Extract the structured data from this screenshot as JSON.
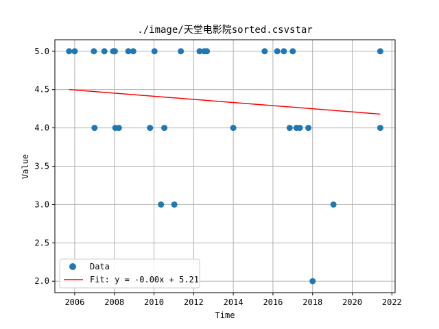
{
  "chart_data": {
    "type": "scatter",
    "title": "./image/天堂电影院sorted.csvstar",
    "xlabel": "Time",
    "ylabel": "Value",
    "xlim": [
      "2005-01-01",
      "2022-03-01"
    ],
    "ylim": [
      1.85,
      5.15
    ],
    "xticks": [
      "2006",
      "2008",
      "2010",
      "2012",
      "2014",
      "2016",
      "2018",
      "2020",
      "2022"
    ],
    "yticks": [
      "2.0",
      "2.5",
      "3.0",
      "3.5",
      "4.0",
      "4.5",
      "5.0"
    ],
    "grid": true,
    "legend_position": "lower-left",
    "series": [
      {
        "name": "Data",
        "kind": "points",
        "color": "#1f77b4",
        "points": [
          {
            "x": "2005-09-20",
            "y": 5.0
          },
          {
            "x": "2006-01-01",
            "y": 5.0
          },
          {
            "x": "2006-12-20",
            "y": 5.0
          },
          {
            "x": "2007-01-01",
            "y": 4.0
          },
          {
            "x": "2007-07-01",
            "y": 5.0
          },
          {
            "x": "2007-12-10",
            "y": 5.0
          },
          {
            "x": "2008-01-10",
            "y": 5.0
          },
          {
            "x": "2008-01-20",
            "y": 4.0
          },
          {
            "x": "2008-03-25",
            "y": 4.0
          },
          {
            "x": "2008-09-15",
            "y": 5.0
          },
          {
            "x": "2008-12-15",
            "y": 5.0
          },
          {
            "x": "2009-10-20",
            "y": 4.0
          },
          {
            "x": "2010-01-10",
            "y": 5.0
          },
          {
            "x": "2010-05-10",
            "y": 3.0
          },
          {
            "x": "2010-07-10",
            "y": 4.0
          },
          {
            "x": "2011-01-10",
            "y": 3.0
          },
          {
            "x": "2011-05-10",
            "y": 5.0
          },
          {
            "x": "2012-04-20",
            "y": 5.0
          },
          {
            "x": "2012-07-15",
            "y": 5.0
          },
          {
            "x": "2012-09-01",
            "y": 5.0
          },
          {
            "x": "2014-01-01",
            "y": 4.0
          },
          {
            "x": "2015-08-01",
            "y": 5.0
          },
          {
            "x": "2016-03-20",
            "y": 5.0
          },
          {
            "x": "2016-07-20",
            "y": 5.0
          },
          {
            "x": "2016-11-05",
            "y": 4.0
          },
          {
            "x": "2017-01-01",
            "y": 5.0
          },
          {
            "x": "2017-03-10",
            "y": 4.0
          },
          {
            "x": "2017-05-10",
            "y": 4.0
          },
          {
            "x": "2017-10-15",
            "y": 4.0
          },
          {
            "x": "2018-01-01",
            "y": 2.0
          },
          {
            "x": "2019-01-20",
            "y": 3.0
          },
          {
            "x": "2021-06-01",
            "y": 5.0
          },
          {
            "x": "2021-06-01",
            "y": 4.0
          }
        ]
      },
      {
        "name": "Fit: y = -0.00x + 5.21",
        "kind": "line",
        "color": "#ff0000",
        "points": [
          {
            "x": "2005-09-20",
            "y": 4.5
          },
          {
            "x": "2021-06-01",
            "y": 4.18
          }
        ]
      }
    ]
  }
}
